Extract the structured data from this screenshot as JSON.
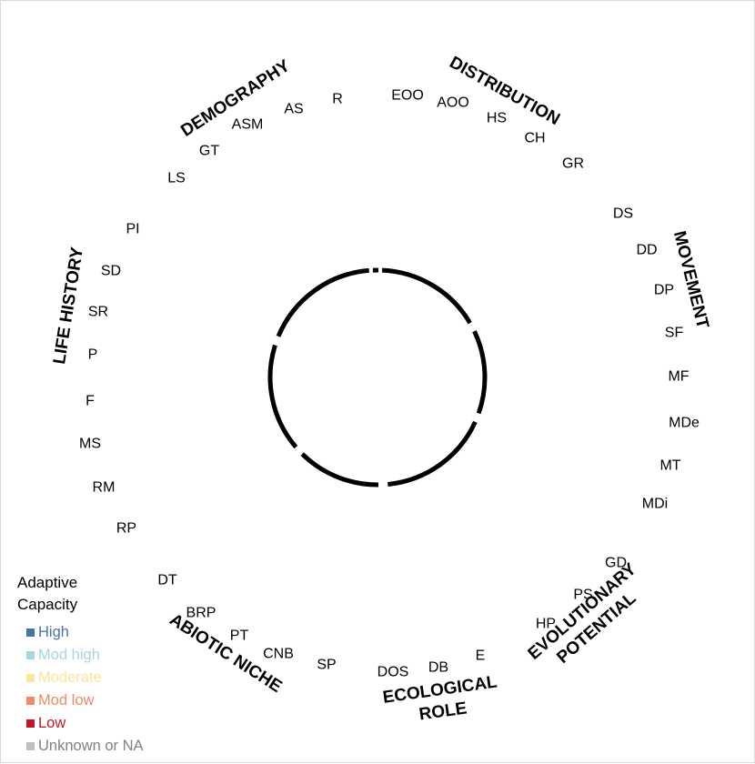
{
  "diagram": {
    "categories": [
      {
        "name": "DEMOGRAPHY",
        "lines": [
          "DEMOGRAPHY"
        ],
        "angle": -37,
        "attributes": [
          "LS",
          "GT",
          "ASM",
          "AS",
          "R"
        ]
      },
      {
        "name": "DISTRIBUTION",
        "lines": [
          "DISTRIBUTION"
        ],
        "angle": 28,
        "attributes": [
          "EOO",
          "AOO",
          "HS",
          "CH",
          "GR"
        ]
      },
      {
        "name": "MOVEMENT",
        "lines": [
          "MOVEMENT"
        ],
        "angle": 80,
        "attributes": [
          "DS",
          "DD",
          "DP",
          "SF",
          "MF",
          "MDe",
          "MT",
          "MDi"
        ]
      },
      {
        "name": "EVOLUTIONARY POTENTIAL",
        "lines": [
          "EVOLUTIONARY",
          "POTENTIAL"
        ],
        "angle": 136,
        "attributes": [
          "GD",
          "PS",
          "HP"
        ]
      },
      {
        "name": "ECOLOGICAL ROLE",
        "lines": [
          "ECOLOGICAL",
          "ROLE"
        ],
        "angle": 180,
        "attributes": [
          "E",
          "DB",
          "DOS"
        ]
      },
      {
        "name": "ABIOTIC NICHE",
        "lines": [
          "ABIOTIC NICHE"
        ],
        "angle": 219,
        "attributes": [
          "SP",
          "CNB",
          "PT",
          "BRP",
          "DT"
        ]
      },
      {
        "name": "LIFE HISTORY",
        "lines": [
          "LIFE HISTORY"
        ],
        "angle": 273,
        "attributes": [
          "RP",
          "RM",
          "MS",
          "F",
          "P",
          "SR",
          "SD",
          "PI"
        ]
      }
    ]
  },
  "legend": {
    "title": "Adaptive Capacity",
    "items": [
      {
        "label": "High",
        "color": "#4a74a8"
      },
      {
        "label": "Mod high",
        "color": "#a8d4e6"
      },
      {
        "label": "Moderate",
        "color": "#fde49b"
      },
      {
        "label": "Mod low",
        "color": "#f08a62"
      },
      {
        "label": "Low",
        "color": "#c4142c"
      },
      {
        "label": "Unknown or NA",
        "color": "#bfbfbf"
      }
    ]
  }
}
